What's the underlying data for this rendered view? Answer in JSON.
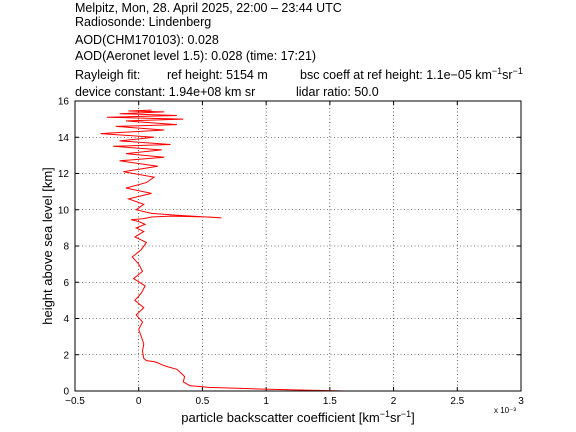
{
  "header": {
    "line1": "Melpitz, Mon, 28. April 2025, 22:00 – 23:44 UTC",
    "line2": "Radiosonde: Lindenberg",
    "line3": "AOD(CHM170103): 0.028",
    "line4": "AOD(Aeronet level 1.5): 0.028   (time: 17:21)",
    "rayleigh_label": "Rayleigh fit:",
    "ref_height": "ref height: 5154 m",
    "bsc_coeff_prefix": "bsc coeff at ref height: 1.1e−05 km",
    "device_constant": "device constant: 1.94e+08 km sr",
    "lidar_ratio": "lidar ratio: 50.0"
  },
  "chart_data": {
    "type": "line",
    "xlabel": "particle backscatter coefficient [km⁻¹sr⁻¹]",
    "ylabel": "height above sea level [km]",
    "x_multiplier": "x 10⁻³",
    "xlim": [
      -0.5,
      3
    ],
    "ylim": [
      0,
      16
    ],
    "xticks": [
      "−0.5",
      "0",
      "0.5",
      "1",
      "1.5",
      "2",
      "2.5",
      "3"
    ],
    "xtick_values": [
      -0.5,
      0,
      0.5,
      1,
      1.5,
      2,
      2.5,
      3
    ],
    "yticks": [
      "0",
      "2",
      "4",
      "6",
      "8",
      "10",
      "12",
      "14",
      "16"
    ],
    "ytick_values": [
      0,
      2,
      4,
      6,
      8,
      10,
      12,
      14,
      16
    ],
    "grid": true,
    "line_color": "#ff0000",
    "series": [
      {
        "x": [
          1.62,
          1.3,
          0.9,
          0.55,
          0.4,
          0.35,
          0.36,
          0.33,
          0.3,
          0.22,
          0.18,
          0.15,
          0.12,
          0.06,
          0.04,
          0.03,
          0.04,
          0.02,
          0.0,
          0.03,
          -0.02,
          0.04,
          -0.03,
          0.02,
          0.05,
          -0.04,
          0.03,
          0.0,
          -0.05,
          0.02,
          0.06,
          -0.03,
          0.04,
          -0.02,
          0.05,
          0.0,
          -0.06,
          0.03,
          0.07,
          0.1,
          0.25,
          0.55,
          0.65,
          0.3,
          0.1,
          -0.02,
          0.04,
          -0.08,
          0.1,
          -0.1,
          0.06,
          0.12,
          -0.12,
          0.15,
          -0.15,
          0.2,
          -0.1,
          0.18,
          -0.2,
          0.25,
          -0.15,
          0.12,
          -0.3,
          0.2,
          -0.18,
          0.3,
          -0.1,
          0.35,
          -0.25,
          0.3,
          -0.15,
          0.2,
          -0.08,
          0.1
        ],
        "y": [
          0.0,
          0.05,
          0.12,
          0.2,
          0.3,
          0.5,
          0.8,
          1.0,
          1.2,
          1.35,
          1.45,
          1.55,
          1.62,
          1.68,
          1.8,
          2.2,
          2.6,
          3.0,
          3.4,
          3.8,
          4.2,
          4.6,
          5.0,
          5.4,
          5.8,
          6.2,
          6.6,
          7.0,
          7.4,
          7.8,
          8.2,
          8.5,
          8.8,
          9.0,
          9.2,
          9.35,
          9.45,
          9.5,
          9.55,
          9.6,
          9.65,
          9.6,
          9.55,
          9.7,
          9.8,
          10.0,
          10.3,
          10.6,
          10.9,
          11.2,
          11.5,
          11.8,
          12.1,
          12.4,
          12.7,
          12.9,
          13.1,
          13.3,
          13.5,
          13.6,
          13.8,
          14.0,
          14.2,
          14.4,
          14.6,
          14.7,
          14.9,
          15.0,
          15.1,
          15.2,
          15.3,
          15.4,
          15.45,
          15.5
        ]
      }
    ]
  }
}
